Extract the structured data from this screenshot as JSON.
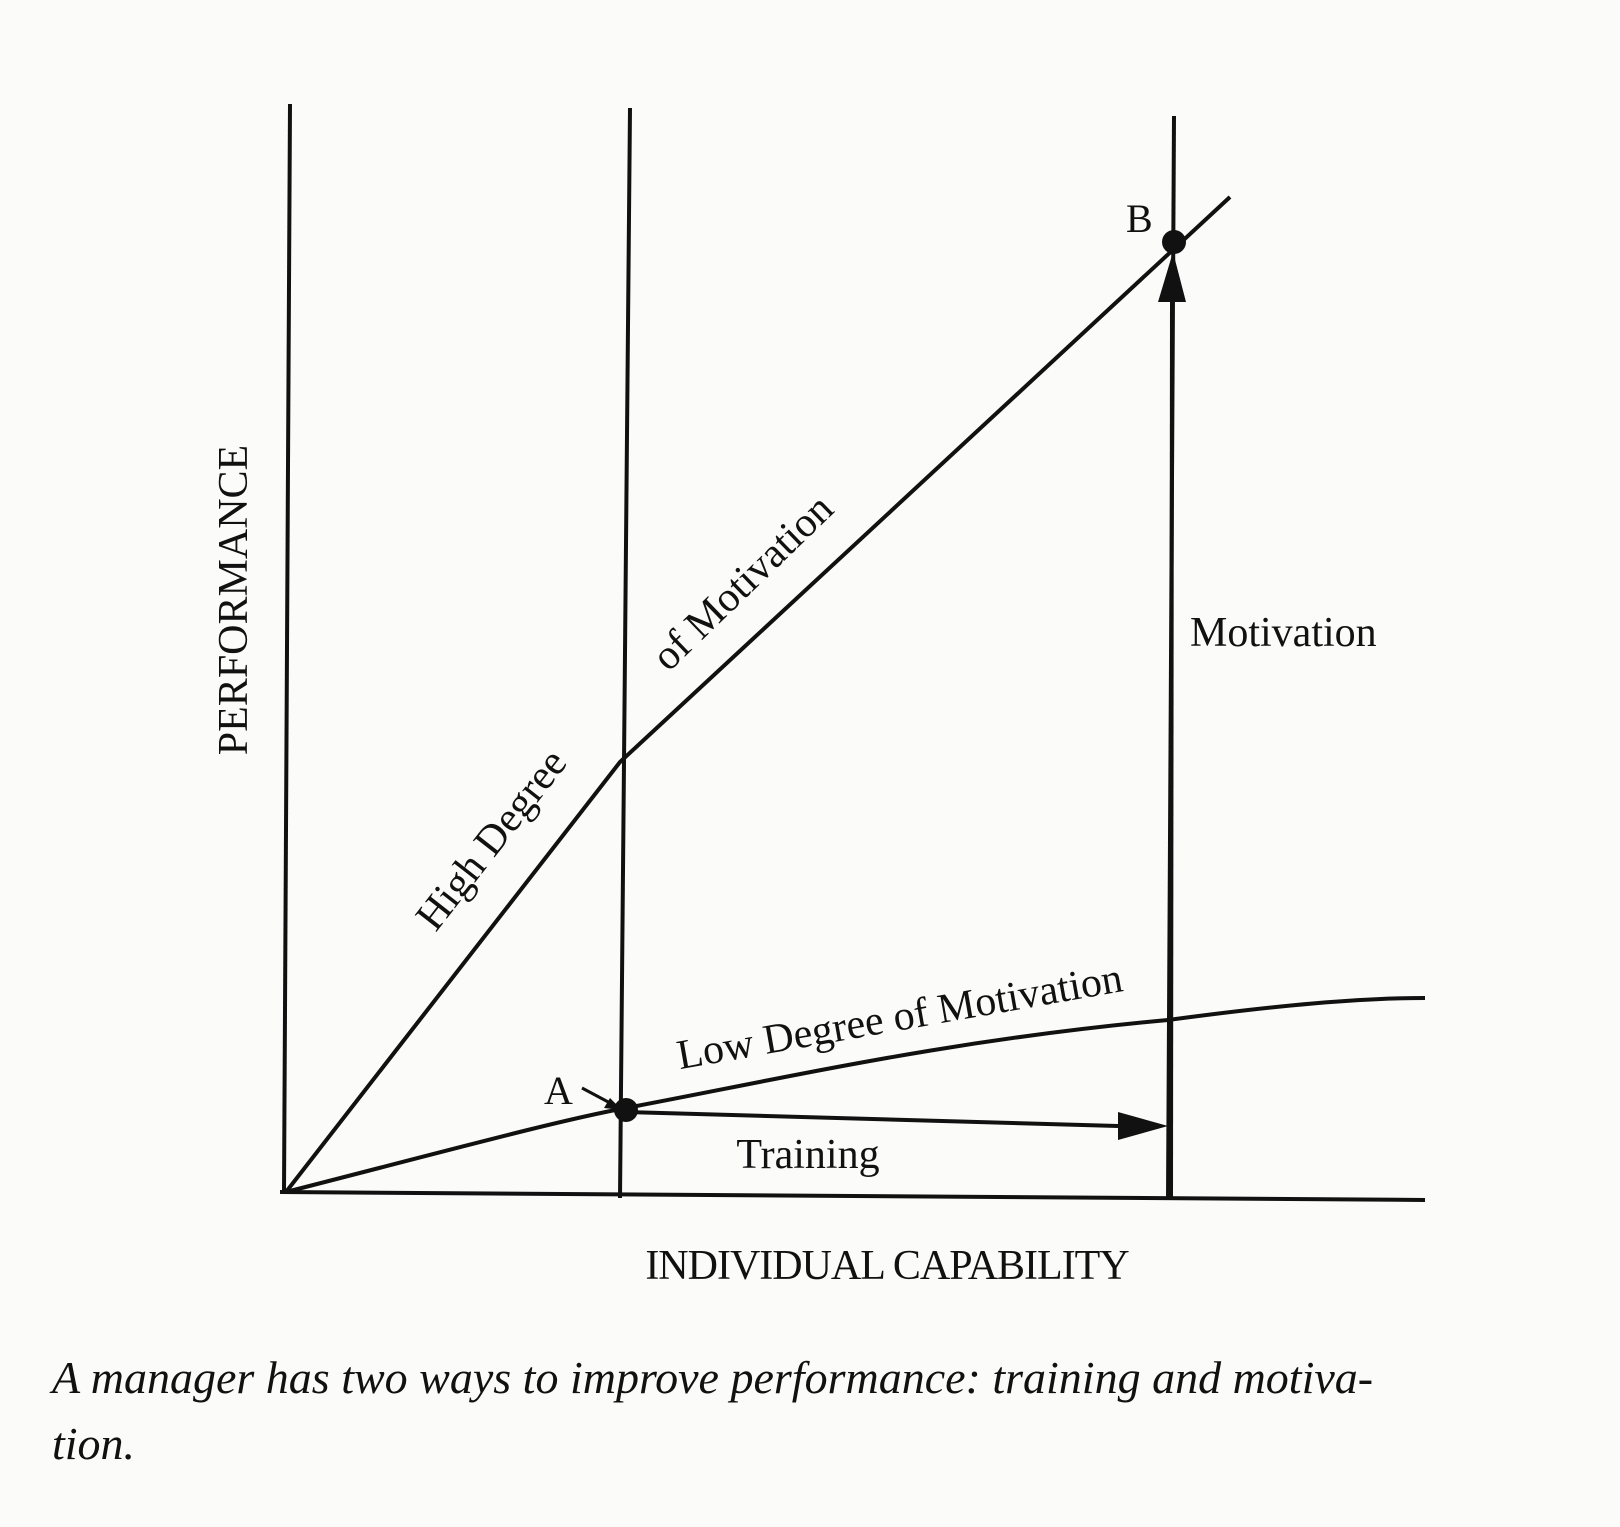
{
  "diagram": {
    "y_axis_label": "PERFORMANCE",
    "x_axis_label": "INDIVIDUAL CAPABILITY",
    "high_curve_label_part1": "High Degree",
    "high_curve_label_part2": "of Motivation",
    "low_curve_label": "Low Degree of Motivation",
    "point_a_label": "A",
    "point_b_label": "B",
    "training_label": "Training",
    "motivation_label": "Motivation"
  },
  "caption": {
    "line1": "A manager has two ways to improve performance: training and motiva-",
    "line2": "tion."
  }
}
